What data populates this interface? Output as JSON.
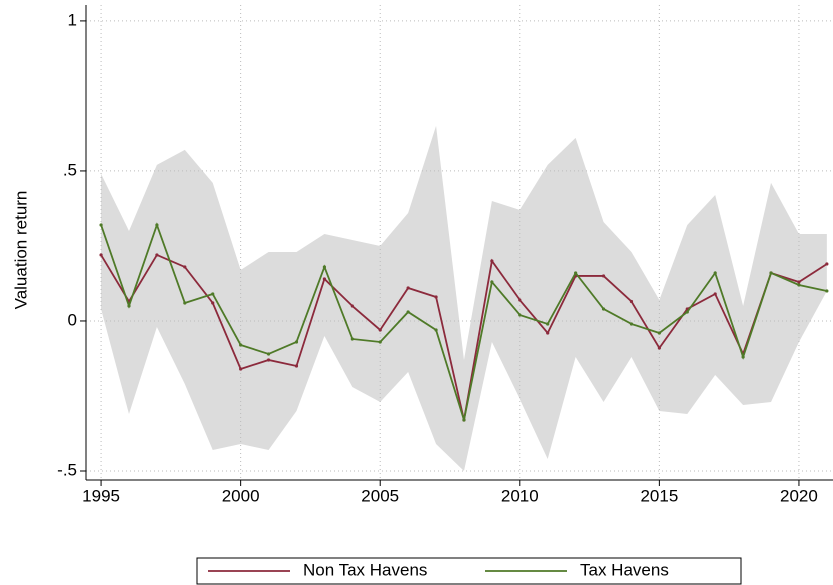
{
  "chart_data": {
    "type": "line",
    "ylabel": "Valuation return",
    "x": [
      1995,
      1996,
      1997,
      1998,
      1999,
      2000,
      2001,
      2002,
      2003,
      2004,
      2005,
      2006,
      2007,
      2008,
      2009,
      2010,
      2011,
      2012,
      2013,
      2014,
      2015,
      2016,
      2017,
      2018,
      2019,
      2020,
      2021
    ],
    "series": [
      {
        "name": "Non Tax Havens",
        "color": "#8c2a3c",
        "values": [
          0.22,
          0.065,
          0.22,
          0.18,
          0.06,
          -0.16,
          -0.13,
          -0.15,
          0.14,
          0.05,
          -0.03,
          0.11,
          0.08,
          -0.33,
          0.2,
          0.07,
          -0.04,
          0.15,
          0.15,
          0.065,
          -0.09,
          0.04,
          0.09,
          -0.11,
          0.16,
          0.13,
          0.19
        ]
      },
      {
        "name": "Tax Havens",
        "color": "#4f7a28",
        "values": [
          0.32,
          0.05,
          0.32,
          0.06,
          0.09,
          -0.08,
          -0.11,
          -0.07,
          0.18,
          -0.06,
          -0.07,
          0.03,
          -0.03,
          -0.33,
          0.13,
          0.02,
          -0.01,
          0.16,
          0.04,
          -0.01,
          -0.04,
          0.03,
          0.16,
          -0.12,
          0.16,
          0.12,
          0.1
        ]
      }
    ],
    "band": {
      "color": "#dcdcdc",
      "upper": [
        0.49,
        0.3,
        0.52,
        0.57,
        0.46,
        0.17,
        0.23,
        0.23,
        0.29,
        0.27,
        0.25,
        0.36,
        0.65,
        -0.13,
        0.4,
        0.37,
        0.52,
        0.61,
        0.33,
        0.23,
        0.07,
        0.32,
        0.42,
        0.05,
        0.46,
        0.29,
        0.29
      ],
      "lower": [
        0.04,
        -0.31,
        -0.02,
        -0.21,
        -0.43,
        -0.41,
        -0.43,
        -0.3,
        -0.05,
        -0.22,
        -0.27,
        -0.17,
        -0.41,
        -0.5,
        -0.07,
        -0.26,
        -0.46,
        -0.12,
        -0.27,
        -0.12,
        -0.3,
        -0.31,
        -0.18,
        -0.28,
        -0.27,
        -0.07,
        0.1
      ]
    },
    "xlim": [
      1994.46,
      2021.22
    ],
    "ylim": [
      -0.53,
      1.053
    ],
    "xticks": [
      1995,
      2000,
      2005,
      2010,
      2015,
      2020
    ],
    "yticks": [
      {
        "value": -0.5,
        "label": "-.5"
      },
      0,
      {
        "value": 0.5,
        "label": ".5"
      },
      1
    ],
    "grid": true
  }
}
